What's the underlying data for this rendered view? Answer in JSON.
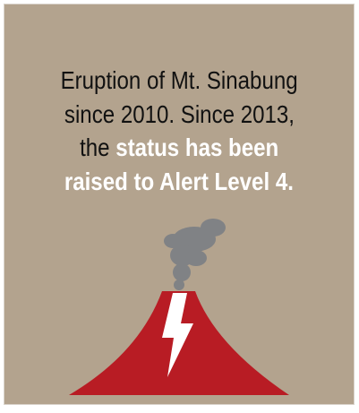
{
  "caption_plain": [
    "Eruption of Mt. Sinabung",
    "since 2010. Since 2013,",
    "the"
  ],
  "caption_bold": [
    "status has been",
    "raised to Alert Level 4."
  ]
}
